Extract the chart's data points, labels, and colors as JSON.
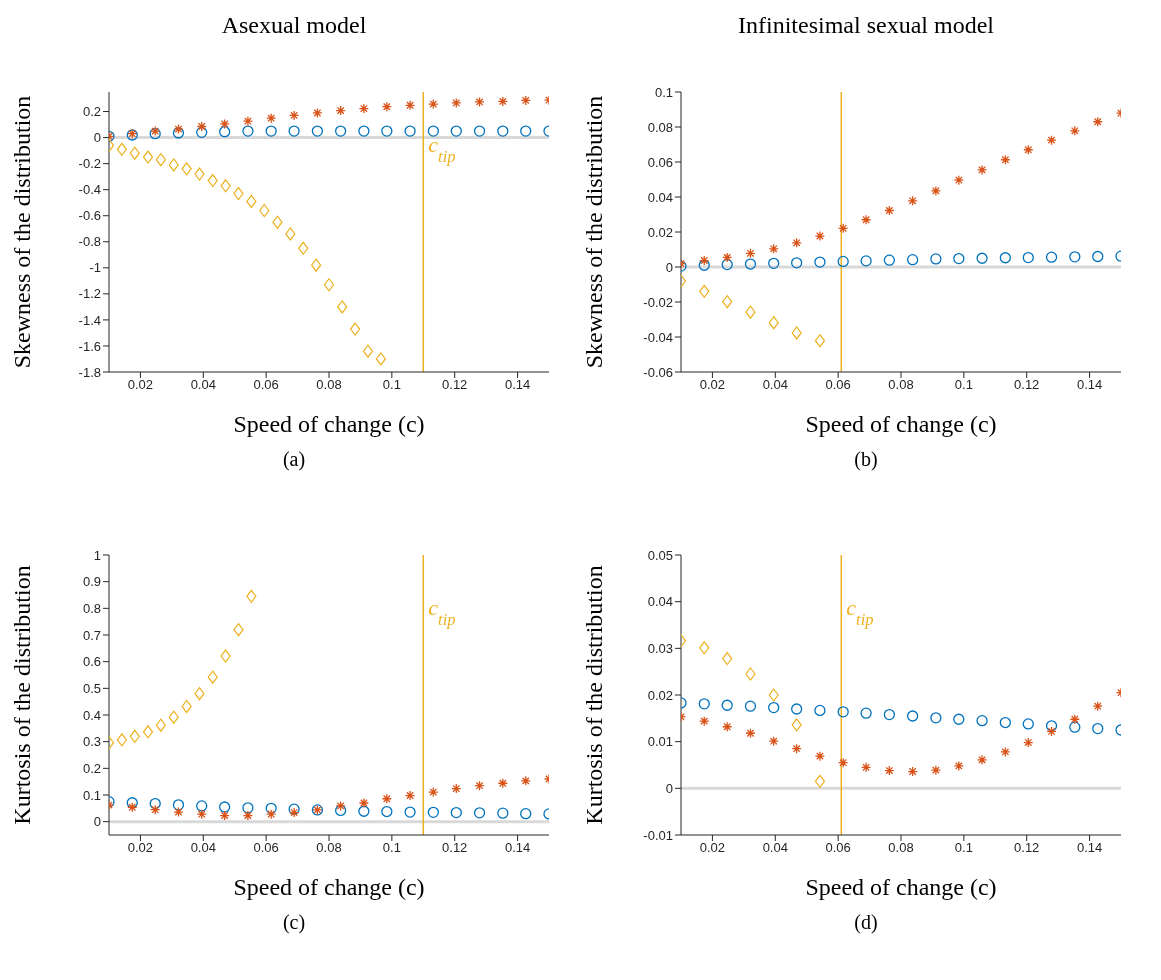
{
  "chart_data": [
    {
      "type": "scatter",
      "title": "Asexual model",
      "xlabel": "Speed of change (c)",
      "ylabel": "Skewness of the distribution",
      "annotations": [
        "(a)"
      ],
      "x": [
        0.01,
        0.0174,
        0.0247,
        0.0321,
        0.0395,
        0.0468,
        0.0542,
        0.0616,
        0.0689,
        0.0763,
        0.0837,
        0.0911,
        0.0984,
        0.1058,
        0.1132,
        0.1205,
        0.1279,
        0.1353,
        0.1426,
        0.15
      ],
      "series": [
        {
          "color": "#0072bd",
          "marker": "circle",
          "values": [
            0.01,
            0.02,
            0.03,
            0.035,
            0.04,
            0.045,
            0.05,
            0.05,
            0.05,
            0.05,
            0.05,
            0.05,
            0.05,
            0.05,
            0.05,
            0.05,
            0.05,
            0.05,
            0.05,
            0.05
          ]
        },
        {
          "color": "#d95319",
          "marker": "cross",
          "values": [
            0.01,
            0.03,
            0.05,
            0.065,
            0.085,
            0.105,
            0.126,
            0.149,
            0.17,
            0.189,
            0.207,
            0.223,
            0.237,
            0.248,
            0.257,
            0.266,
            0.274,
            0.278,
            0.285,
            0.287
          ]
        },
        {
          "color": "#edb120",
          "marker": "diamond",
          "x": [
            0.01,
            0.0141,
            0.0182,
            0.0224,
            0.0265,
            0.0306,
            0.0347,
            0.0388,
            0.043,
            0.0471,
            0.0512,
            0.0553,
            0.0594,
            0.0636,
            0.0677,
            0.0718,
            0.0759,
            0.08,
            0.0842,
            0.0883,
            0.0924,
            0.0965
          ],
          "values": [
            -0.06,
            -0.09,
            -0.12,
            -0.15,
            -0.17,
            -0.21,
            -0.24,
            -0.28,
            -0.33,
            -0.37,
            -0.43,
            -0.49,
            -0.56,
            -0.65,
            -0.74,
            -0.85,
            -0.98,
            -1.13,
            -1.3,
            -1.47,
            -1.64,
            -1.7
          ]
        }
      ],
      "xlim": [
        0.01,
        0.15
      ],
      "xticks": [
        0.02,
        0.04,
        0.06,
        0.08,
        0.1,
        0.12,
        0.14
      ],
      "ylim": [
        -1.8,
        0.35
      ],
      "yticks": [
        -1.8,
        -1.6,
        -1.4,
        -1.2,
        -1,
        -0.8,
        -0.6,
        -0.4,
        -0.2,
        0,
        0.2
      ],
      "ref_lines": [
        {
          "axis": "y",
          "value": 0,
          "color": "#d9d9d9"
        },
        {
          "axis": "x",
          "value": 0.11,
          "label": "c$_{tip}$",
          "color": "#edb120"
        }
      ]
    },
    {
      "type": "scatter",
      "title": "Infinitesimal sexual model",
      "xlabel": "Speed of change (c)",
      "ylabel": "Skewness of the distribution",
      "annotations": [
        "(b)"
      ],
      "x": [
        0.01,
        0.0174,
        0.0247,
        0.0321,
        0.0395,
        0.0468,
        0.0542,
        0.0616,
        0.0689,
        0.0763,
        0.0837,
        0.0911,
        0.0984,
        0.1058,
        0.1132,
        0.1205,
        0.1279,
        0.1353,
        0.1426,
        0.15
      ],
      "series": [
        {
          "color": "#0072bd",
          "marker": "circle",
          "values": [
            0.0005,
            0.001,
            0.0014,
            0.0017,
            0.0021,
            0.0024,
            0.0028,
            0.0032,
            0.0035,
            0.0039,
            0.0042,
            0.0046,
            0.0048,
            0.005,
            0.0053,
            0.0054,
            0.0056,
            0.0058,
            0.006,
            0.0062
          ]
        },
        {
          "color": "#d95319",
          "marker": "cross",
          "values": [
            0.0019,
            0.0037,
            0.0055,
            0.0078,
            0.0104,
            0.0138,
            0.0177,
            0.0221,
            0.027,
            0.0323,
            0.0378,
            0.0435,
            0.0496,
            0.0555,
            0.0613,
            0.067,
            0.0725,
            0.0778,
            0.083,
            0.0879
          ]
        },
        {
          "color": "#edb120",
          "marker": "diamond",
          "x": [
            0.01,
            0.0174,
            0.0247,
            0.0321,
            0.0395,
            0.0468,
            0.0542
          ],
          "values": [
            -0.008,
            -0.0139,
            -0.0198,
            -0.0258,
            -0.0318,
            -0.0377,
            -0.0421
          ]
        }
      ],
      "xlim": [
        0.01,
        0.15
      ],
      "xticks": [
        0.02,
        0.04,
        0.06,
        0.08,
        0.1,
        0.12,
        0.14
      ],
      "ylim": [
        -0.06,
        0.1
      ],
      "yticks": [
        -0.06,
        -0.04,
        -0.02,
        0,
        0.02,
        0.04,
        0.06,
        0.08,
        0.1
      ],
      "ref_lines": [
        {
          "axis": "y",
          "value": 0,
          "color": "#d9d9d9"
        },
        {
          "axis": "x",
          "value": 0.061,
          "color": "#edb120"
        }
      ]
    },
    {
      "type": "scatter",
      "xlabel": "Speed of change (c)",
      "ylabel": "Kurtosis of the distribution",
      "annotations": [
        "(c)"
      ],
      "x": [
        0.01,
        0.0174,
        0.0247,
        0.0321,
        0.0395,
        0.0468,
        0.0542,
        0.0616,
        0.0689,
        0.0763,
        0.0837,
        0.0911,
        0.0984,
        0.1058,
        0.1132,
        0.1205,
        0.1279,
        0.1353,
        0.1426,
        0.15
      ],
      "series": [
        {
          "color": "#0072bd",
          "marker": "circle",
          "values": [
            0.075,
            0.071,
            0.068,
            0.063,
            0.059,
            0.055,
            0.052,
            0.05,
            0.047,
            0.044,
            0.042,
            0.039,
            0.038,
            0.036,
            0.035,
            0.034,
            0.033,
            0.032,
            0.03,
            0.029
          ]
        },
        {
          "color": "#d95319",
          "marker": "cross",
          "values": [
            0.062,
            0.054,
            0.045,
            0.036,
            0.028,
            0.023,
            0.023,
            0.028,
            0.034,
            0.044,
            0.059,
            0.07,
            0.086,
            0.098,
            0.111,
            0.124,
            0.135,
            0.144,
            0.153,
            0.16
          ]
        },
        {
          "color": "#edb120",
          "marker": "diamond",
          "x": [
            0.01,
            0.0141,
            0.0182,
            0.0224,
            0.0265,
            0.0306,
            0.0347,
            0.0388,
            0.043,
            0.0471,
            0.0512,
            0.0553
          ],
          "values": [
            0.296,
            0.307,
            0.32,
            0.337,
            0.362,
            0.392,
            0.432,
            0.48,
            0.542,
            0.621,
            0.72,
            0.845
          ]
        }
      ],
      "xlim": [
        0.01,
        0.15
      ],
      "xticks": [
        0.02,
        0.04,
        0.06,
        0.08,
        0.1,
        0.12,
        0.14
      ],
      "ylim": [
        -0.05,
        1
      ],
      "yticks": [
        0,
        0.1,
        0.2,
        0.3,
        0.4,
        0.5,
        0.6,
        0.7,
        0.8,
        0.9,
        1
      ],
      "ref_lines": [
        {
          "axis": "y",
          "value": 0,
          "color": "#d9d9d9"
        },
        {
          "axis": "x",
          "value": 0.11,
          "label": "c$_{tip}$",
          "color": "#edb120"
        }
      ]
    },
    {
      "type": "scatter",
      "xlabel": "Speed of change (c)",
      "ylabel": "Kurtosis of the distribution",
      "annotations": [
        "(d)"
      ],
      "x": [
        0.01,
        0.0174,
        0.0247,
        0.0321,
        0.0395,
        0.0468,
        0.0542,
        0.0616,
        0.0689,
        0.0763,
        0.0837,
        0.0911,
        0.0984,
        0.1058,
        0.1132,
        0.1205,
        0.1279,
        0.1353,
        0.1426,
        0.15
      ],
      "series": [
        {
          "color": "#0072bd",
          "marker": "circle",
          "values": [
            0.0183,
            0.0181,
            0.0178,
            0.0176,
            0.0173,
            0.017,
            0.0167,
            0.0164,
            0.0161,
            0.0158,
            0.0155,
            0.0151,
            0.0148,
            0.0145,
            0.0141,
            0.0138,
            0.0134,
            0.0131,
            0.0128,
            0.0125
          ]
        },
        {
          "color": "#d95319",
          "marker": "cross",
          "values": [
            0.0153,
            0.0144,
            0.0132,
            0.0118,
            0.0101,
            0.0085,
            0.0069,
            0.0055,
            0.0045,
            0.0038,
            0.0036,
            0.0039,
            0.0048,
            0.0061,
            0.0078,
            0.0098,
            0.0122,
            0.0148,
            0.0176,
            0.0205
          ]
        },
        {
          "color": "#edb120",
          "marker": "diamond",
          "x": [
            0.01,
            0.0174,
            0.0247,
            0.0321,
            0.0395,
            0.0468,
            0.0542
          ],
          "values": [
            0.0316,
            0.0301,
            0.0278,
            0.0245,
            0.02,
            0.0136,
            0.0015
          ]
        }
      ],
      "xlim": [
        0.01,
        0.15
      ],
      "xticks": [
        0.02,
        0.04,
        0.06,
        0.08,
        0.1,
        0.12,
        0.14
      ],
      "ylim": [
        -0.01,
        0.05
      ],
      "yticks": [
        -0.01,
        0,
        0.01,
        0.02,
        0.03,
        0.04,
        0.05
      ],
      "ref_lines": [
        {
          "axis": "y",
          "value": 0,
          "color": "#d9d9d9"
        },
        {
          "axis": "x",
          "value": 0.061,
          "label": "c$_{tip}$",
          "color": "#edb120"
        }
      ]
    }
  ]
}
